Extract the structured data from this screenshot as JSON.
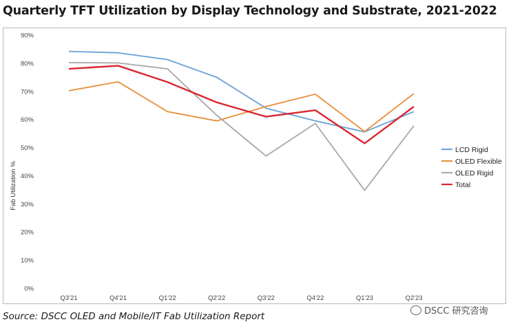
{
  "chart_data": {
    "type": "line",
    "title": "Quarterly TFT Utilization by Display Technology and Substrate, 2021-2022",
    "xlabel": "",
    "ylabel": "Fab Utilization %",
    "ylim": [
      0,
      90
    ],
    "yticks": [
      "0%",
      "10%",
      "20%",
      "30%",
      "40%",
      "50%",
      "60%",
      "70%",
      "80%",
      "90%"
    ],
    "categories": [
      "Q3'21",
      "Q4'21",
      "Q1'22",
      "Q2'22",
      "Q3'22",
      "Q4'22",
      "Q1'23",
      "Q2'23"
    ],
    "grid": false,
    "legend_position": "right",
    "series": [
      {
        "name": "LCD Rigid",
        "color": "#6fa5d8",
        "values": [
          84.2,
          83.7,
          81.3,
          75.0,
          64.0,
          59.5,
          55.6,
          62.8
        ]
      },
      {
        "name": "OLED Flexible",
        "color": "#e8923f",
        "values": [
          70.2,
          73.4,
          62.8,
          59.5,
          64.6,
          69.0,
          55.7,
          69.2
        ]
      },
      {
        "name": "OLED Rigid",
        "color": "#ababab",
        "values": [
          80.2,
          80.1,
          78.0,
          61.5,
          47.0,
          58.6,
          34.8,
          57.8
        ]
      },
      {
        "name": "Total",
        "color": "#d9262d",
        "values": [
          78.0,
          79.1,
          73.3,
          66.1,
          61.0,
          63.3,
          51.5,
          64.6
        ]
      }
    ]
  },
  "source": "Source: DSCC OLED and Mobile/IT Fab Utilization Report",
  "watermark": "DSCC 研究咨询"
}
